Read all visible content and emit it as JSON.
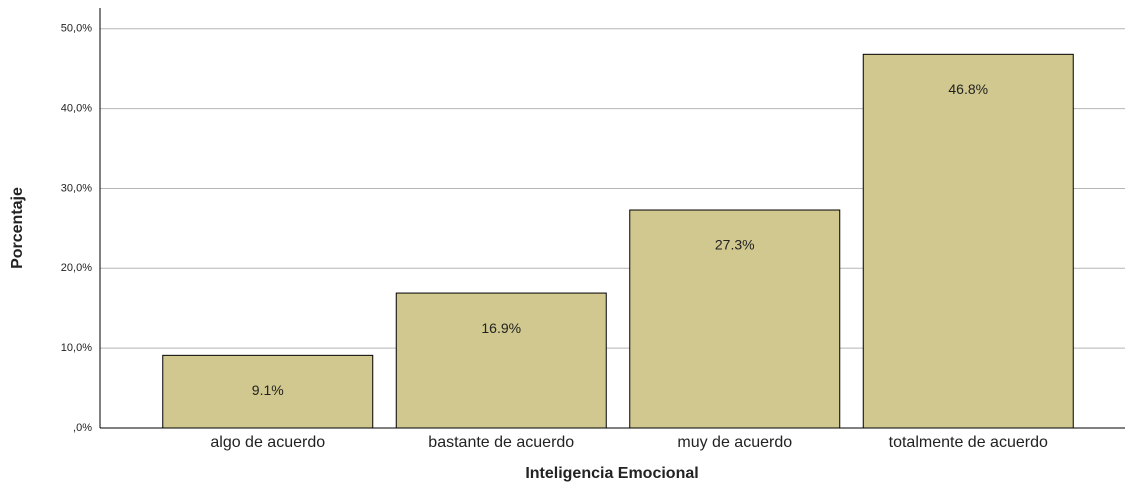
{
  "chart_data": {
    "type": "bar",
    "x_label": "Inteligencia Emocional",
    "y_label": "Porcentaje",
    "categories": [
      "algo de acuerdo",
      "bastante de acuerdo",
      "muy de acuerdo",
      "totalmente de acuerdo"
    ],
    "values": [
      9.1,
      16.9,
      27.3,
      46.8
    ],
    "value_labels": [
      "9.1%",
      "16.9%",
      "27.3%",
      "46.8%"
    ],
    "color": "#d0c88e",
    "ylim": [
      0,
      52.6
    ],
    "yticks": [
      {
        "value": 0,
        "label": ",0%"
      },
      {
        "value": 10,
        "label": "10,0%"
      },
      {
        "value": 20,
        "label": "20,0%"
      },
      {
        "value": 30,
        "label": "30,0%"
      },
      {
        "value": 40,
        "label": "40,0%"
      },
      {
        "value": 50,
        "label": "50,0%"
      }
    ],
    "grid": true
  }
}
